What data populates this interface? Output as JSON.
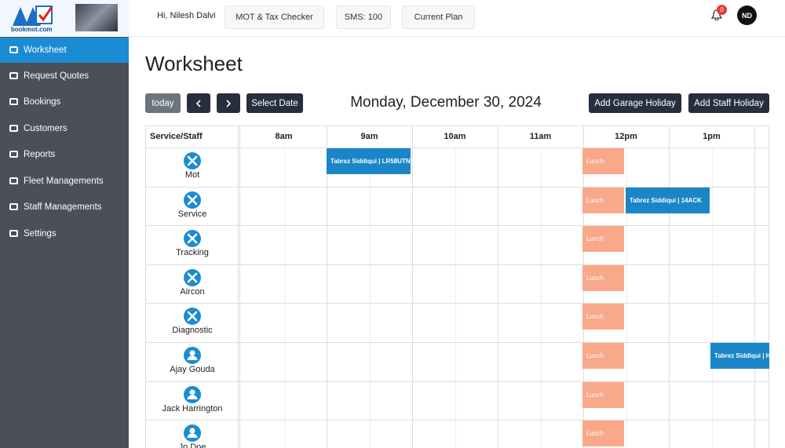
{
  "header": {
    "logo": "bookmot.com",
    "greeting": "Hi, Nilesh Dalvi",
    "buttons": [
      "MOT & Tax Checker",
      "SMS: 100",
      "Current Plan"
    ],
    "notification_count": 0,
    "avatar": "ND"
  },
  "sidebar": {
    "items": [
      "Worksheet",
      "Request Quotes",
      "Bookings",
      "Customers",
      "Reports",
      "Fleet Managements",
      "Staff Managements",
      "Settings"
    ],
    "active": 0
  },
  "page": {
    "title": "Worksheet",
    "today": "today",
    "select_date": "Select Date",
    "date": "Monday, December 30, 2024",
    "actions": [
      "Add Garage Holiday",
      "Add Staff Holiday"
    ]
  },
  "table": {
    "corner": "Service/Staff",
    "hours": [
      "8am",
      "9am",
      "10am",
      "11am",
      "12pm",
      "1pm"
    ],
    "rows": [
      {
        "label": "Mot",
        "icon": "tool",
        "events": [
          "Tabrez Siddiqui | LR58UTN",
          "Lunch"
        ]
      },
      {
        "label": "Service",
        "icon": "tool",
        "events": [
          "Lunch",
          "Tabrez Siddiqui | 14ACK"
        ]
      },
      {
        "label": "Tracking",
        "icon": "tool",
        "events": [
          "Lunch"
        ]
      },
      {
        "label": "Aircon",
        "icon": "tool",
        "events": [
          "Lunch"
        ]
      },
      {
        "label": "Diagnostic",
        "icon": "tool",
        "events": [
          "Lunch"
        ]
      },
      {
        "label": "Ajay Gouda",
        "icon": "person",
        "events": [
          "Lunch",
          "Tabrez Siddiqui | H"
        ]
      },
      {
        "label": "Jack Harrington",
        "icon": "person",
        "events": [
          "Lunch"
        ]
      },
      {
        "label": "Jo Doe",
        "icon": "person",
        "events": [
          "Lunch"
        ]
      }
    ]
  }
}
